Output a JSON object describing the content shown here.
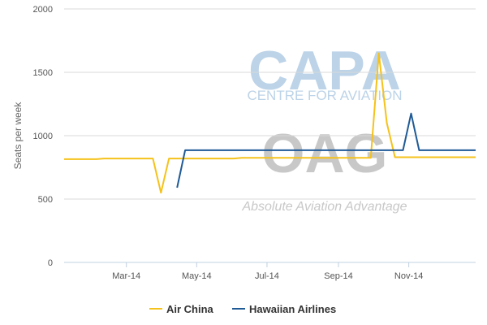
{
  "chart_data": {
    "type": "line",
    "ylabel": "Seats per week",
    "ylim": [
      0,
      2000
    ],
    "yticks": [
      0,
      500,
      1000,
      1500,
      2000
    ],
    "xlim": [
      "2014-01-06",
      "2014-12-29"
    ],
    "xticks": [
      {
        "label": "Mar-14",
        "date": "2014-03-01"
      },
      {
        "label": "May-14",
        "date": "2014-05-01"
      },
      {
        "label": "Jul-14",
        "date": "2014-07-01"
      },
      {
        "label": "Sep-14",
        "date": "2014-09-01"
      },
      {
        "label": "Nov-14",
        "date": "2014-11-01"
      }
    ],
    "grid": "horizontal",
    "legend_position": "bottom",
    "series": [
      {
        "name": "Air China",
        "color": "#F5C21B",
        "points": [
          [
            "2014-01-06",
            815
          ],
          [
            "2014-01-13",
            815
          ],
          [
            "2014-01-20",
            815
          ],
          [
            "2014-01-27",
            815
          ],
          [
            "2014-02-03",
            815
          ],
          [
            "2014-02-10",
            820
          ],
          [
            "2014-02-17",
            820
          ],
          [
            "2014-02-24",
            820
          ],
          [
            "2014-03-03",
            820
          ],
          [
            "2014-03-10",
            820
          ],
          [
            "2014-03-17",
            820
          ],
          [
            "2014-03-24",
            820
          ],
          [
            "2014-03-31",
            550
          ],
          [
            "2014-04-07",
            820
          ],
          [
            "2014-04-14",
            820
          ],
          [
            "2014-04-21",
            820
          ],
          [
            "2014-04-28",
            820
          ],
          [
            "2014-05-05",
            820
          ],
          [
            "2014-05-12",
            820
          ],
          [
            "2014-05-19",
            820
          ],
          [
            "2014-05-26",
            820
          ],
          [
            "2014-06-02",
            820
          ],
          [
            "2014-06-09",
            825
          ],
          [
            "2014-06-16",
            825
          ],
          [
            "2014-06-23",
            825
          ],
          [
            "2014-06-30",
            825
          ],
          [
            "2014-07-07",
            825
          ],
          [
            "2014-07-14",
            825
          ],
          [
            "2014-07-21",
            825
          ],
          [
            "2014-07-28",
            825
          ],
          [
            "2014-08-04",
            825
          ],
          [
            "2014-08-11",
            825
          ],
          [
            "2014-08-18",
            825
          ],
          [
            "2014-08-25",
            825
          ],
          [
            "2014-09-01",
            825
          ],
          [
            "2014-09-08",
            825
          ],
          [
            "2014-09-15",
            825
          ],
          [
            "2014-09-22",
            825
          ],
          [
            "2014-09-29",
            825
          ],
          [
            "2014-10-06",
            1650
          ],
          [
            "2014-10-13",
            1100
          ],
          [
            "2014-10-20",
            830
          ],
          [
            "2014-10-27",
            830
          ],
          [
            "2014-11-03",
            830
          ],
          [
            "2014-11-10",
            830
          ],
          [
            "2014-11-17",
            830
          ],
          [
            "2014-11-24",
            830
          ],
          [
            "2014-12-01",
            830
          ],
          [
            "2014-12-08",
            830
          ],
          [
            "2014-12-15",
            830
          ],
          [
            "2014-12-22",
            830
          ],
          [
            "2014-12-29",
            830
          ]
        ]
      },
      {
        "name": "Hawaiian Airlines",
        "color": "#1F5A96",
        "points": [
          [
            "2014-04-14",
            590
          ],
          [
            "2014-04-21",
            885
          ],
          [
            "2014-04-28",
            885
          ],
          [
            "2014-05-05",
            885
          ],
          [
            "2014-05-12",
            885
          ],
          [
            "2014-05-19",
            885
          ],
          [
            "2014-05-26",
            885
          ],
          [
            "2014-06-02",
            885
          ],
          [
            "2014-06-09",
            885
          ],
          [
            "2014-06-16",
            885
          ],
          [
            "2014-06-23",
            885
          ],
          [
            "2014-06-30",
            885
          ],
          [
            "2014-07-07",
            885
          ],
          [
            "2014-07-14",
            885
          ],
          [
            "2014-07-21",
            885
          ],
          [
            "2014-07-28",
            885
          ],
          [
            "2014-08-04",
            885
          ],
          [
            "2014-08-11",
            885
          ],
          [
            "2014-08-18",
            885
          ],
          [
            "2014-08-25",
            885
          ],
          [
            "2014-09-01",
            885
          ],
          [
            "2014-09-08",
            885
          ],
          [
            "2014-09-15",
            885
          ],
          [
            "2014-09-22",
            885
          ],
          [
            "2014-09-29",
            885
          ],
          [
            "2014-10-06",
            885
          ],
          [
            "2014-10-13",
            885
          ],
          [
            "2014-10-20",
            885
          ],
          [
            "2014-10-27",
            885
          ],
          [
            "2014-11-03",
            1175
          ],
          [
            "2014-11-10",
            885
          ],
          [
            "2014-11-17",
            885
          ],
          [
            "2014-11-24",
            885
          ],
          [
            "2014-12-01",
            885
          ],
          [
            "2014-12-08",
            885
          ],
          [
            "2014-12-15",
            885
          ],
          [
            "2014-12-22",
            885
          ],
          [
            "2014-12-29",
            885
          ]
        ]
      }
    ]
  },
  "watermarks": {
    "capa": "CAPA",
    "capa_sub": "CENTRE FOR AVIATION",
    "oag": "OAG",
    "oag_tag": "Absolute Aviation Advantage"
  },
  "colors": {
    "grid": "#D8D8D8",
    "axis": "#C0D0E0",
    "capa_watermark": "#BCD3E8",
    "oag_watermark": "#C8C8C8"
  }
}
